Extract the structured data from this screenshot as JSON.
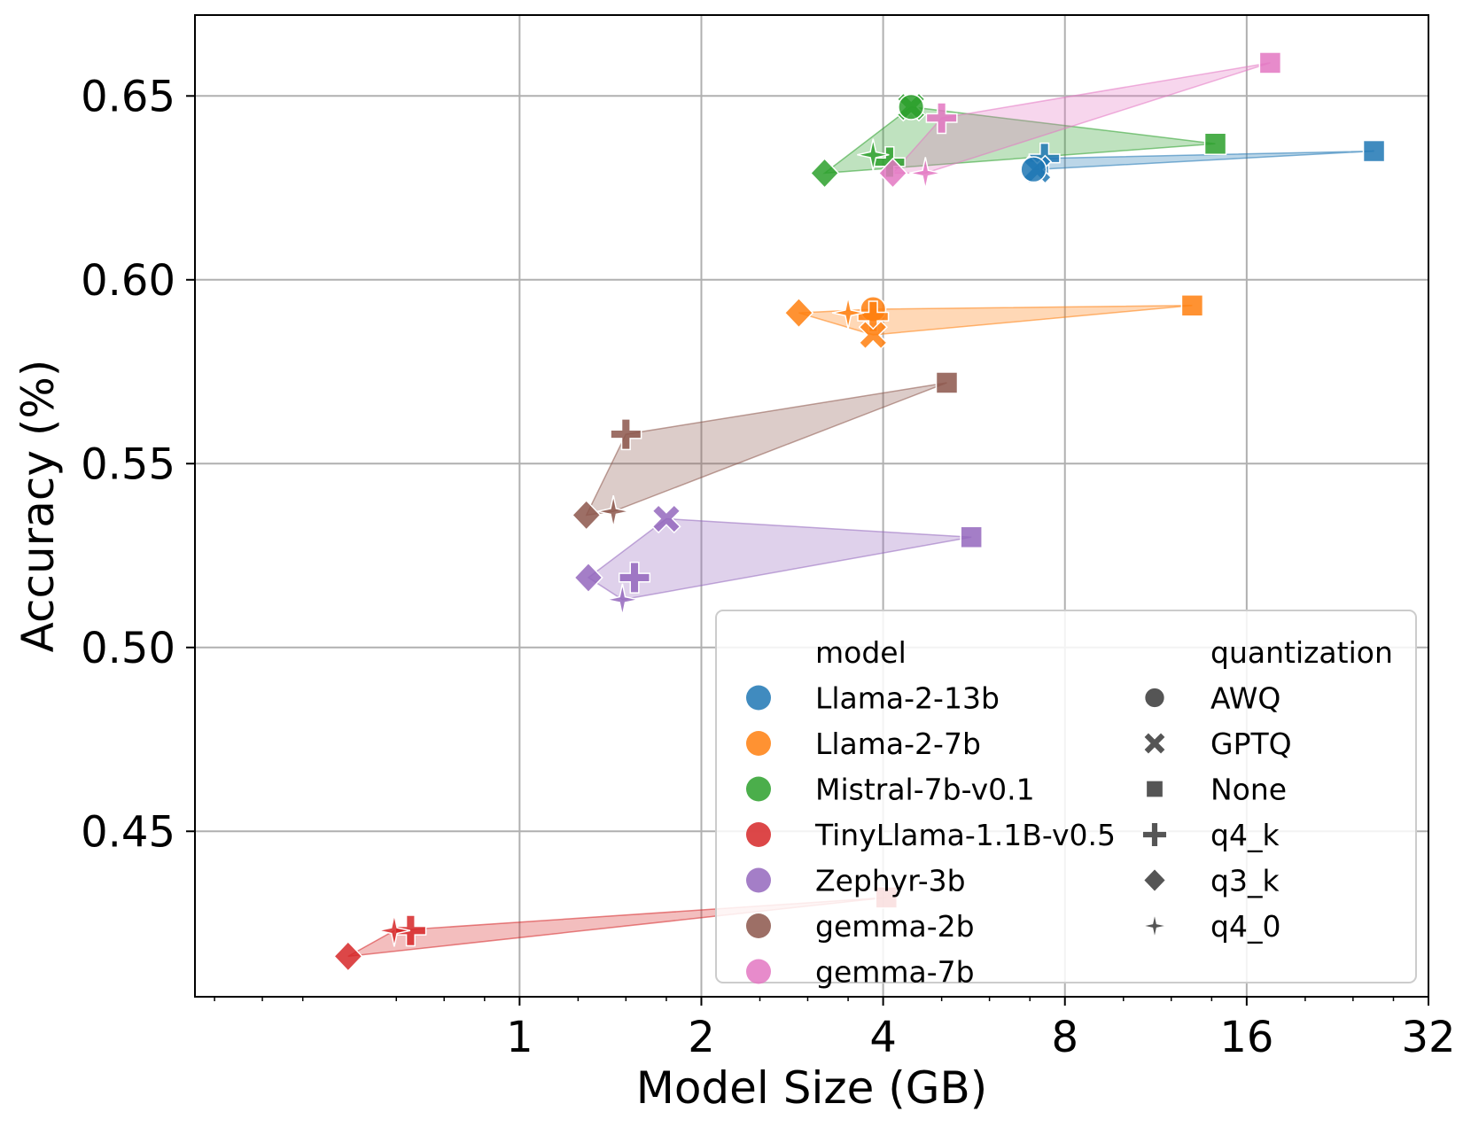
{
  "chart_data": {
    "type": "scatter",
    "xlabel": "Model Size (GB)",
    "ylabel": "Accuracy (%)",
    "xscale": "log2",
    "xlim": [
      0.29,
      32
    ],
    "ylim": [
      0.405,
      0.672
    ],
    "xticks": [
      {
        "value": 1,
        "label": "1"
      },
      {
        "value": 2,
        "label": "2"
      },
      {
        "value": 4,
        "label": "4"
      },
      {
        "value": 8,
        "label": "8"
      },
      {
        "value": 16,
        "label": "16"
      },
      {
        "value": 32,
        "label": "32"
      }
    ],
    "yticks": [
      {
        "value": 0.45,
        "label": "0.45"
      },
      {
        "value": 0.5,
        "label": "0.50"
      },
      {
        "value": 0.55,
        "label": "0.55"
      },
      {
        "value": 0.6,
        "label": "0.60"
      },
      {
        "value": 0.65,
        "label": "0.65"
      }
    ],
    "grid": true,
    "legend": {
      "position": "lower-right",
      "model_title": "model",
      "quantization_title": "quantization"
    },
    "models": [
      {
        "name": "Llama-2-13b",
        "color": "#1f77b4"
      },
      {
        "name": "Llama-2-7b",
        "color": "#ff7f0e"
      },
      {
        "name": "Mistral-7b-v0.1",
        "color": "#2ca02c"
      },
      {
        "name": "TinyLlama-1.1B-v0.5",
        "color": "#d62728"
      },
      {
        "name": "Zephyr-3b",
        "color": "#9467bd"
      },
      {
        "name": "gemma-2b",
        "color": "#8c564b"
      },
      {
        "name": "gemma-7b",
        "color": "#e377c2"
      }
    ],
    "quantizations": [
      {
        "name": "AWQ",
        "marker": "circle"
      },
      {
        "name": "GPTQ",
        "marker": "x"
      },
      {
        "name": "None",
        "marker": "square"
      },
      {
        "name": "q4_k",
        "marker": "plus"
      },
      {
        "name": "q3_k",
        "marker": "diamond"
      },
      {
        "name": "q4_0",
        "marker": "star"
      }
    ],
    "points": [
      {
        "model": "Llama-2-13b",
        "quant": "None",
        "x": 26.0,
        "y": 0.635
      },
      {
        "model": "Llama-2-13b",
        "quant": "q4_k",
        "x": 7.4,
        "y": 0.633
      },
      {
        "model": "Llama-2-13b",
        "quant": "GPTQ",
        "x": 7.2,
        "y": 0.63
      },
      {
        "model": "Llama-2-13b",
        "quant": "AWQ",
        "x": 7.1,
        "y": 0.63
      },
      {
        "model": "Llama-2-7b",
        "quant": "None",
        "x": 13.0,
        "y": 0.593
      },
      {
        "model": "Llama-2-7b",
        "quant": "AWQ",
        "x": 3.85,
        "y": 0.592
      },
      {
        "model": "Llama-2-7b",
        "quant": "q4_k",
        "x": 3.85,
        "y": 0.59
      },
      {
        "model": "Llama-2-7b",
        "quant": "q4_0",
        "x": 3.5,
        "y": 0.591
      },
      {
        "model": "Llama-2-7b",
        "quant": "q3_k",
        "x": 2.9,
        "y": 0.591
      },
      {
        "model": "Llama-2-7b",
        "quant": "GPTQ",
        "x": 3.85,
        "y": 0.585
      },
      {
        "model": "Mistral-7b-v0.1",
        "quant": "None",
        "x": 14.2,
        "y": 0.637
      },
      {
        "model": "Mistral-7b-v0.1",
        "quant": "GPTQ",
        "x": 4.45,
        "y": 0.647
      },
      {
        "model": "Mistral-7b-v0.1",
        "quant": "AWQ",
        "x": 4.45,
        "y": 0.647
      },
      {
        "model": "Mistral-7b-v0.1",
        "quant": "q4_k",
        "x": 4.1,
        "y": 0.632
      },
      {
        "model": "Mistral-7b-v0.1",
        "quant": "q4_0",
        "x": 3.85,
        "y": 0.634
      },
      {
        "model": "Mistral-7b-v0.1",
        "quant": "q3_k",
        "x": 3.2,
        "y": 0.629
      },
      {
        "model": "TinyLlama-1.1B-v0.5",
        "quant": "None",
        "x": 4.05,
        "y": 0.432
      },
      {
        "model": "TinyLlama-1.1B-v0.5",
        "quant": "q4_k",
        "x": 0.66,
        "y": 0.423
      },
      {
        "model": "TinyLlama-1.1B-v0.5",
        "quant": "q4_0",
        "x": 0.62,
        "y": 0.423
      },
      {
        "model": "TinyLlama-1.1B-v0.5",
        "quant": "q3_k",
        "x": 0.52,
        "y": 0.416
      },
      {
        "model": "Zephyr-3b",
        "quant": "None",
        "x": 5.6,
        "y": 0.53
      },
      {
        "model": "Zephyr-3b",
        "quant": "GPTQ",
        "x": 1.75,
        "y": 0.535
      },
      {
        "model": "Zephyr-3b",
        "quant": "q4_k",
        "x": 1.55,
        "y": 0.519
      },
      {
        "model": "Zephyr-3b",
        "quant": "q3_k",
        "x": 1.3,
        "y": 0.519
      },
      {
        "model": "Zephyr-3b",
        "quant": "q4_0",
        "x": 1.48,
        "y": 0.513
      },
      {
        "model": "gemma-2b",
        "quant": "None",
        "x": 5.1,
        "y": 0.572
      },
      {
        "model": "gemma-2b",
        "quant": "q4_k",
        "x": 1.5,
        "y": 0.558
      },
      {
        "model": "gemma-2b",
        "quant": "q4_0",
        "x": 1.43,
        "y": 0.537
      },
      {
        "model": "gemma-2b",
        "quant": "q3_k",
        "x": 1.29,
        "y": 0.536
      },
      {
        "model": "gemma-7b",
        "quant": "None",
        "x": 17.5,
        "y": 0.659
      },
      {
        "model": "gemma-7b",
        "quant": "q4_k",
        "x": 5.0,
        "y": 0.644
      },
      {
        "model": "gemma-7b",
        "quant": "q4_0",
        "x": 4.7,
        "y": 0.629
      },
      {
        "model": "gemma-7b",
        "quant": "q3_k",
        "x": 4.15,
        "y": 0.629
      }
    ]
  }
}
